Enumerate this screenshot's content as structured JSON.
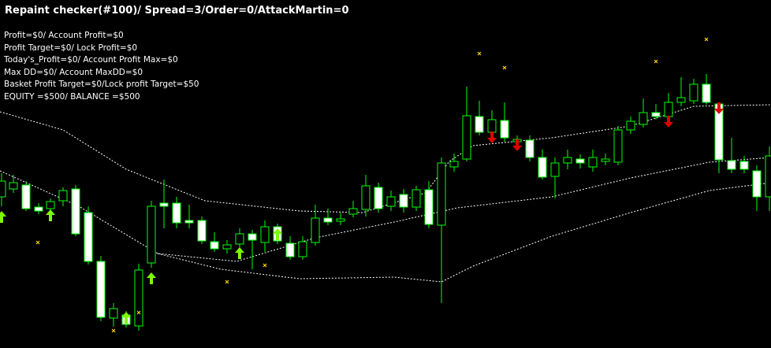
{
  "header": {
    "title": "Repaint checker(#100)/ Spread=3/Order=0/AttackMartin=0"
  },
  "info": [
    "Profit=$0/ Account Profit=$0",
    "Profit Target=$0/ Lock Profit=$0",
    "Today's_Profit=$0/ Account Profit Max=$0",
    "Max DD=$0/ Account MaxDD=$0",
    "Basket Profit Target=$0/Lock profit Target=$50",
    "EQUITY =$500/ BALANCE =$500"
  ]
}
